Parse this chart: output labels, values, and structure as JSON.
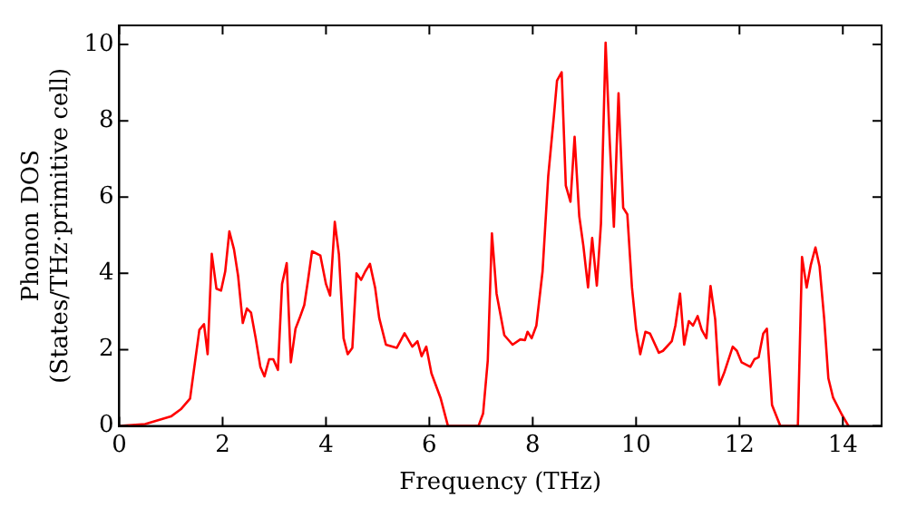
{
  "chart_data": {
    "type": "line",
    "xlabel": "Frequency (THz)",
    "ylabel": "Phonon DOS\n(States/THz·primitive cell)",
    "x": [
      0,
      0.5,
      1.0,
      1.2,
      1.37,
      1.55,
      1.64,
      1.71,
      1.79,
      1.88,
      1.97,
      2.05,
      2.13,
      2.22,
      2.3,
      2.39,
      2.47,
      2.55,
      2.64,
      2.73,
      2.81,
      2.9,
      2.98,
      3.07,
      3.15,
      3.24,
      3.32,
      3.41,
      3.49,
      3.58,
      3.65,
      3.73,
      3.89,
      4.0,
      4.08,
      4.17,
      4.25,
      4.34,
      4.42,
      4.51,
      4.59,
      4.68,
      4.76,
      4.85,
      4.95,
      5.03,
      5.16,
      5.37,
      5.52,
      5.67,
      5.77,
      5.85,
      5.94,
      6.04,
      6.22,
      6.36,
      6.95,
      7.04,
      7.13,
      7.21,
      7.3,
      7.45,
      7.61,
      7.76,
      7.85,
      7.9,
      7.98,
      8.07,
      8.19,
      8.3,
      8.41,
      8.47,
      8.56,
      8.64,
      8.73,
      8.81,
      8.9,
      8.98,
      9.07,
      9.15,
      9.24,
      9.32,
      9.41,
      9.49,
      9.57,
      9.66,
      9.75,
      9.83,
      9.92,
      10.0,
      10.08,
      10.18,
      10.27,
      10.44,
      10.52,
      10.69,
      10.76,
      10.85,
      10.93,
      11.02,
      11.1,
      11.19,
      11.27,
      11.36,
      11.44,
      11.53,
      11.61,
      11.7,
      11.87,
      11.95,
      12.04,
      12.21,
      12.29,
      12.37,
      12.46,
      12.53,
      12.63,
      12.79,
      13.13,
      13.21,
      13.3,
      13.38,
      13.47,
      13.55,
      13.64,
      13.72,
      13.81,
      13.98,
      14.11
    ],
    "series": [
      {
        "color": "#ff0000",
        "values": [
          0,
          0.05,
          0.25,
          0.45,
          0.72,
          2.52,
          2.67,
          1.88,
          4.51,
          3.6,
          3.55,
          4.05,
          5.1,
          4.63,
          3.93,
          2.7,
          3.08,
          2.97,
          2.3,
          1.55,
          1.3,
          1.75,
          1.75,
          1.47,
          3.72,
          4.27,
          1.67,
          2.55,
          2.83,
          3.17,
          3.8,
          4.58,
          4.47,
          3.72,
          3.42,
          5.35,
          4.5,
          2.3,
          1.88,
          2.05,
          4.0,
          3.83,
          4.05,
          4.25,
          3.63,
          2.83,
          2.13,
          2.05,
          2.43,
          2.08,
          2.22,
          1.83,
          2.08,
          1.38,
          0.72,
          0,
          0,
          0.33,
          1.72,
          5.05,
          3.47,
          2.38,
          2.13,
          2.27,
          2.25,
          2.47,
          2.3,
          2.63,
          4.05,
          6.55,
          8.13,
          9.05,
          9.27,
          6.3,
          5.88,
          7.58,
          5.5,
          4.72,
          3.63,
          4.93,
          3.68,
          5.3,
          10.05,
          7.47,
          5.22,
          8.72,
          5.72,
          5.55,
          3.63,
          2.55,
          1.88,
          2.47,
          2.42,
          1.92,
          1.97,
          2.22,
          2.63,
          3.47,
          2.13,
          2.75,
          2.63,
          2.88,
          2.52,
          2.3,
          3.67,
          2.8,
          1.08,
          1.38,
          2.08,
          1.97,
          1.67,
          1.55,
          1.75,
          1.8,
          2.42,
          2.55,
          0.55,
          0,
          0,
          4.43,
          3.63,
          4.22,
          4.68,
          4.18,
          2.8,
          1.25,
          0.75,
          0.3,
          0
        ]
      }
    ],
    "xlim": [
      0,
      14.75
    ],
    "ylim": [
      0,
      10.5
    ],
    "xticks": [
      0,
      2,
      4,
      6,
      8,
      10,
      12,
      14
    ],
    "yticks": [
      0,
      2,
      4,
      6,
      8,
      10
    ],
    "grid": false,
    "legend": false,
    "marker": "none",
    "line_style": "solid"
  }
}
